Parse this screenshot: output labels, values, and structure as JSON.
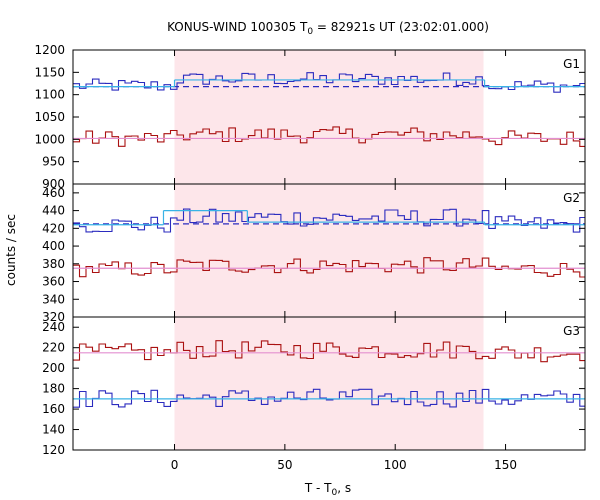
{
  "chart_data": {
    "type": "line",
    "title": {
      "main": "KONUS-WIND 100305 T",
      "sub": "0",
      "rest": " = 82921s UT (23:02:01.000)"
    },
    "xlabel": {
      "main": "T - T",
      "sub": "0",
      "rest": ", s"
    },
    "ylabel": "counts / sec",
    "xlim": [
      -46,
      186
    ],
    "xticks": [
      0,
      50,
      100,
      150
    ],
    "shaded_interval": [
      0,
      140
    ],
    "bin_width": 2.944,
    "panels": [
      {
        "name": "G1",
        "ylim": [
          900,
          1200
        ],
        "yticks": [
          900,
          950,
          1000,
          1050,
          1100,
          1150,
          1200
        ],
        "bg_blue": {
          "x": [
            -46,
            140.5
          ],
          "y": [
            1118,
            1133
          ],
          "note": ""
        },
        "series": [
          {
            "name": "blue",
            "color": "#2b2bbf",
            "base": 1120,
            "pulse": 1135,
            "amp": 15
          },
          {
            "name": "red",
            "color": "#aa1111",
            "base": 1002,
            "pulse": 1010,
            "amp": 18
          }
        ],
        "fits": [
          {
            "name": "background",
            "color": "#2b2bbf",
            "dash": true,
            "y": 1118
          },
          {
            "name": "blue-fit",
            "color": "#39b3e6",
            "segments": [
              [
                -46,
                0,
                1118
              ],
              [
                0,
                140.5,
                1133
              ],
              [
                140.5,
                186,
                1118
              ]
            ]
          },
          {
            "name": "red-fit",
            "color": "#e38fd0",
            "segments": [
              [
                -46,
                186,
                1002
              ]
            ]
          }
        ]
      },
      {
        "name": "G2",
        "ylim": [
          320,
          470
        ],
        "yticks": [
          320,
          340,
          360,
          380,
          400,
          420,
          440,
          460
        ],
        "series": [
          {
            "name": "blue",
            "color": "#2b2bbf",
            "base": 424,
            "pulse": 432,
            "amp": 10
          },
          {
            "name": "red",
            "color": "#aa1111",
            "base": 374,
            "pulse": 378,
            "amp": 9
          }
        ],
        "fits": [
          {
            "name": "background",
            "color": "#2b2bbf",
            "dash": true,
            "y": 425
          },
          {
            "name": "blue-fit",
            "color": "#39b3e6",
            "segments": [
              [
                -46,
                -5,
                424
              ],
              [
                -5,
                33,
                440
              ],
              [
                33,
                140.5,
                427
              ],
              [
                140.5,
                186,
                424
              ]
            ]
          },
          {
            "name": "red-fit",
            "color": "#e38fd0",
            "segments": [
              [
                -46,
                186,
                375
              ]
            ]
          }
        ]
      },
      {
        "name": "G3",
        "ylim": [
          120,
          250
        ],
        "yticks": [
          120,
          140,
          160,
          180,
          200,
          220,
          240
        ],
        "series": [
          {
            "name": "red",
            "color": "#aa1111",
            "base": 215,
            "pulse": 218,
            "amp": 9
          },
          {
            "name": "blue",
            "color": "#2b2bbf",
            "base": 170,
            "pulse": 171,
            "amp": 9
          }
        ],
        "fits": [
          {
            "name": "blue-fit",
            "color": "#39b3e6",
            "segments": [
              [
                -46,
                186,
                170
              ]
            ]
          },
          {
            "name": "red-fit",
            "color": "#e38fd0",
            "segments": [
              [
                -46,
                186,
                215
              ]
            ]
          }
        ]
      }
    ]
  }
}
